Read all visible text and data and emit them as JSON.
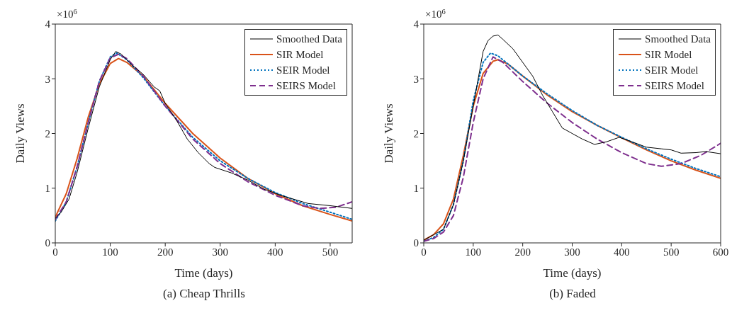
{
  "chart_data": [
    {
      "type": "line",
      "title": "(a) Cheap Thrills",
      "xlabel": "Time (days)",
      "ylabel": "Daily Views",
      "annotations": [
        "×10$^{6}$"
      ],
      "xlim": [
        0,
        540
      ],
      "xticks": [
        0,
        100,
        200,
        300,
        400,
        500
      ],
      "ylim": [
        0,
        4
      ],
      "yticks": [
        0,
        1,
        2,
        3,
        4
      ],
      "legend": "top right",
      "series": [
        {
          "name": "Smoothed Data",
          "color": "#000000",
          "line_style": "solid",
          "x": [
            0,
            10,
            25,
            40,
            60,
            80,
            100,
            110,
            120,
            140,
            160,
            180,
            190,
            200,
            220,
            240,
            260,
            280,
            290,
            320,
            350,
            380,
            410,
            440,
            460,
            500,
            540
          ],
          "values": [
            0.45,
            0.55,
            0.8,
            1.3,
            2.1,
            2.85,
            3.35,
            3.5,
            3.45,
            3.25,
            3.08,
            2.85,
            2.78,
            2.55,
            2.25,
            1.9,
            1.65,
            1.45,
            1.38,
            1.28,
            1.15,
            0.98,
            0.87,
            0.78,
            0.72,
            0.68,
            0.63
          ]
        },
        {
          "name": "SIR Model",
          "color": "#d95319",
          "line_style": "solid",
          "x": [
            0,
            20,
            40,
            60,
            80,
            100,
            115,
            130,
            160,
            200,
            250,
            300,
            350,
            400,
            450,
            500,
            540
          ],
          "values": [
            0.47,
            0.9,
            1.55,
            2.3,
            2.9,
            3.28,
            3.37,
            3.3,
            3.05,
            2.55,
            2.0,
            1.55,
            1.18,
            0.9,
            0.68,
            0.52,
            0.4
          ]
        },
        {
          "name": "SEIR Model",
          "color": "#0072bd",
          "line_style": "dotted",
          "x": [
            0,
            20,
            40,
            60,
            80,
            100,
            112,
            130,
            160,
            200,
            250,
            300,
            350,
            400,
            450,
            500,
            540
          ],
          "values": [
            0.4,
            0.75,
            1.4,
            2.2,
            2.95,
            3.4,
            3.47,
            3.35,
            3.02,
            2.5,
            1.93,
            1.5,
            1.18,
            0.92,
            0.72,
            0.56,
            0.43
          ]
        },
        {
          "name": "SEIRS Model",
          "color": "#7e2f8e",
          "line_style": "dashed",
          "x": [
            0,
            20,
            40,
            60,
            80,
            100,
            115,
            130,
            160,
            200,
            250,
            300,
            350,
            400,
            450,
            480,
            510,
            540
          ],
          "values": [
            0.43,
            0.75,
            1.4,
            2.2,
            2.95,
            3.38,
            3.45,
            3.37,
            3.05,
            2.5,
            1.9,
            1.45,
            1.12,
            0.87,
            0.68,
            0.63,
            0.65,
            0.75
          ]
        }
      ]
    },
    {
      "type": "line",
      "title": "(b) Faded",
      "xlabel": "Time (days)",
      "ylabel": "Daily Views",
      "annotations": [
        "×10$^{6}$"
      ],
      "xlim": [
        0,
        600
      ],
      "xticks": [
        0,
        100,
        200,
        300,
        400,
        500,
        600
      ],
      "ylim": [
        0,
        4
      ],
      "yticks": [
        0,
        1,
        2,
        3,
        4
      ],
      "legend": "top right",
      "series": [
        {
          "name": "Smoothed Data",
          "color": "#000000",
          "line_style": "solid",
          "x": [
            0,
            40,
            60,
            80,
            100,
            120,
            130,
            140,
            150,
            160,
            180,
            200,
            220,
            240,
            260,
            280,
            300,
            320,
            345,
            370,
            395,
            420,
            450,
            480,
            500,
            520,
            550,
            570,
            600
          ],
          "values": [
            0.05,
            0.25,
            0.7,
            1.5,
            2.5,
            3.5,
            3.7,
            3.78,
            3.8,
            3.72,
            3.55,
            3.3,
            3.05,
            2.7,
            2.4,
            2.1,
            2.0,
            1.9,
            1.8,
            1.85,
            1.93,
            1.85,
            1.75,
            1.72,
            1.7,
            1.64,
            1.65,
            1.67,
            1.63
          ]
        },
        {
          "name": "SIR Model",
          "color": "#d95319",
          "line_style": "solid",
          "x": [
            0,
            20,
            40,
            60,
            80,
            100,
            120,
            140,
            150,
            170,
            200,
            250,
            300,
            350,
            400,
            450,
            500,
            550,
            600
          ],
          "values": [
            0.05,
            0.15,
            0.35,
            0.8,
            1.6,
            2.5,
            3.1,
            3.32,
            3.35,
            3.27,
            3.05,
            2.7,
            2.4,
            2.15,
            1.92,
            1.7,
            1.5,
            1.33,
            1.18
          ]
        },
        {
          "name": "SEIR Model",
          "color": "#0072bd",
          "line_style": "dotted",
          "x": [
            0,
            20,
            40,
            60,
            80,
            100,
            120,
            135,
            150,
            200,
            250,
            300,
            350,
            400,
            450,
            500,
            550,
            600
          ],
          "values": [
            0.03,
            0.1,
            0.25,
            0.7,
            1.5,
            2.6,
            3.3,
            3.47,
            3.42,
            3.05,
            2.72,
            2.42,
            2.15,
            1.93,
            1.72,
            1.53,
            1.36,
            1.21
          ]
        },
        {
          "name": "SEIRS Model",
          "color": "#7e2f8e",
          "line_style": "dashed",
          "x": [
            0,
            20,
            40,
            60,
            80,
            100,
            120,
            140,
            160,
            200,
            250,
            300,
            350,
            400,
            450,
            480,
            520,
            560,
            600
          ],
          "values": [
            0.03,
            0.08,
            0.2,
            0.5,
            1.2,
            2.2,
            3.0,
            3.4,
            3.3,
            2.95,
            2.55,
            2.2,
            1.9,
            1.65,
            1.45,
            1.4,
            1.45,
            1.6,
            1.82
          ]
        }
      ]
    }
  ]
}
